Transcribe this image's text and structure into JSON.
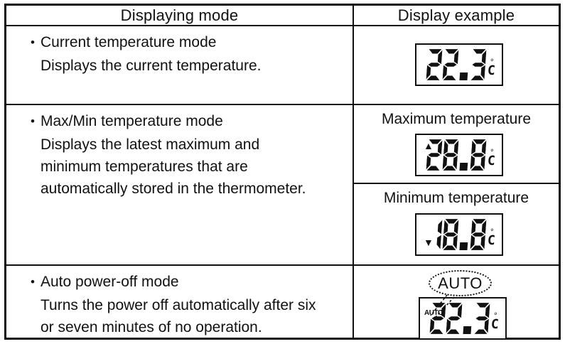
{
  "bullet": "•",
  "unit": {
    "degree": "°",
    "letter": "C"
  },
  "table": {
    "header": {
      "displaying_mode": "Displaying mode",
      "display_example": "Display example"
    },
    "rows": [
      {
        "title": "Current temperature mode",
        "description": [
          "Displays the current temperature."
        ],
        "examples": [
          {
            "label": "",
            "flag": "",
            "value": "22.3"
          }
        ]
      },
      {
        "title": "Max/Min temperature mode",
        "description": [
          "Displays the latest maximum and",
          "minimum temperatures that are",
          "automatically stored in the thermometer."
        ],
        "examples": [
          {
            "label": "Maximum temperature",
            "flag": "▲",
            "value": "28.8"
          },
          {
            "label": "Minimum temperature",
            "flag": "▼",
            "value": "18.8"
          }
        ]
      },
      {
        "title": "Auto power-off mode",
        "description": [
          "Turns the power off automatically after six",
          "or seven minutes of no operation."
        ],
        "examples": [
          {
            "label": "",
            "flag": "AUTO",
            "value": "22.3",
            "callout": "AUTO"
          }
        ]
      }
    ]
  }
}
